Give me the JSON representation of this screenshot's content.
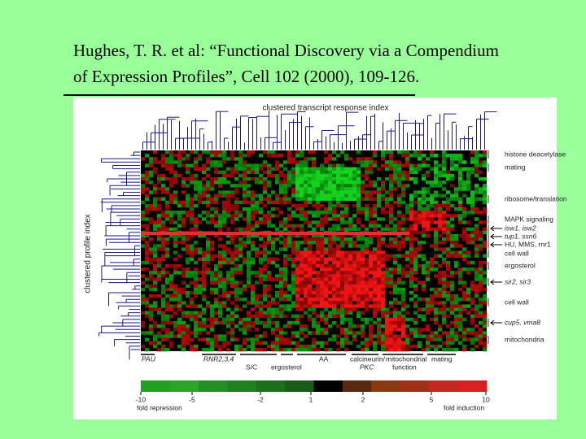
{
  "header": {
    "lines": [
      "Hughes, T. R. et al: “Functional Discovery via a Compendium",
      "of Expression Profiles”, Cell 102 (2000), 109-126."
    ]
  },
  "figure": {
    "top_title": "clustered transcript response index",
    "left_title": "clustered profile index",
    "right_labels": [
      "histone deacetylase",
      "mating",
      "ribosome/translation",
      "MAPK signaling",
      "isw1, isw2",
      "tup1, ssn6",
      "HU, MMS, rnr1",
      "cell wall",
      "ergosterol",
      "sir2, sir3",
      "cell wall",
      "cup5, vma8",
      "mitochondria"
    ],
    "bottom_labels": [
      [
        "PAU"
      ],
      [
        "RNR2,3,4"
      ],
      [
        "S/C"
      ],
      [
        "ergosterol"
      ],
      [
        "AA"
      ],
      [
        "calcineurin/",
        "PKC"
      ],
      [
        "mitochondrial",
        "function"
      ],
      [
        "mating"
      ]
    ],
    "colorbar": {
      "ticks": [
        -10,
        -5,
        -2,
        1,
        2,
        5,
        10
      ],
      "left_label": "fold repression",
      "right_label": "fold induction"
    }
  }
}
